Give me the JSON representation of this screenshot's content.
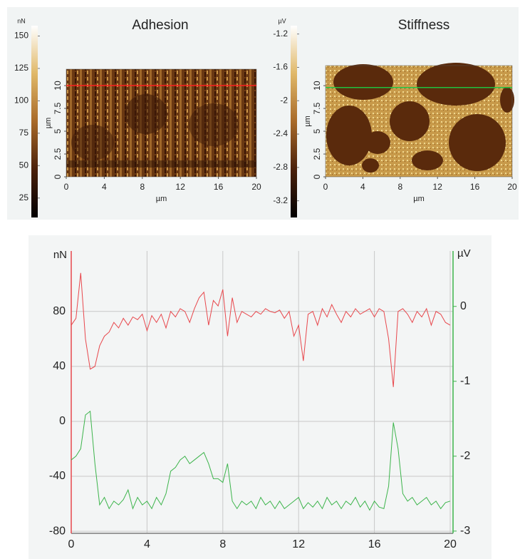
{
  "chart_data": [
    {
      "type": "image",
      "title": "Adhesion",
      "xlabel": "µm",
      "ylabel": "µm",
      "xlim": [
        0,
        20
      ],
      "xticks": [
        0,
        4,
        8,
        12,
        16,
        20
      ],
      "ylim": [
        0,
        11.8
      ],
      "yticks": [
        0,
        2.5,
        5,
        7.5,
        10
      ],
      "colorbar": {
        "label": "nN",
        "clim": [
          10,
          158
        ],
        "ticks": [
          25,
          50,
          75,
          100,
          125,
          150
        ],
        "colormap": [
          "#000000",
          "#4a200a",
          "#a86a2a",
          "#e0b868",
          "#ffffff"
        ]
      },
      "profile_y": 10,
      "profile_color": "#ff2020"
    },
    {
      "type": "image",
      "title": "Stiffness",
      "xlabel": "µm",
      "ylabel": "µm",
      "xlim": [
        0,
        20
      ],
      "xticks": [
        0,
        4,
        8,
        12,
        16,
        20
      ],
      "ylim": [
        0,
        12.2
      ],
      "yticks": [
        0,
        2.5,
        5,
        7.5,
        10
      ],
      "colorbar": {
        "label": "µV",
        "clim": [
          -3.4,
          -1.1
        ],
        "ticks": [
          -3.2,
          -2.8,
          -2.4,
          -2,
          -1.6,
          -1.2
        ],
        "colormap": [
          "#000000",
          "#4a200a",
          "#a86a2a",
          "#e0b868",
          "#ffffff"
        ]
      },
      "profile_y": 9.8,
      "profile_color": "#20c040"
    },
    {
      "type": "line",
      "ylabel": "nN",
      "y2label": "µV",
      "grid": true,
      "xlim": [
        0,
        20
      ],
      "xticks": [
        0,
        4,
        8,
        12,
        16,
        20
      ],
      "ylim": [
        -81.5,
        124
      ],
      "yticks": [
        -80,
        -40,
        0,
        40,
        80
      ],
      "y2lim": [
        -3.03,
        0.74
      ],
      "y2ticks": [
        -3,
        -2,
        -1,
        0
      ],
      "x": [
        0,
        0.25,
        0.5,
        0.75,
        1,
        1.25,
        1.5,
        1.75,
        2,
        2.25,
        2.5,
        2.75,
        3,
        3.25,
        3.5,
        3.75,
        4,
        4.25,
        4.5,
        4.75,
        5,
        5.25,
        5.5,
        5.75,
        6,
        6.25,
        6.5,
        6.75,
        7,
        7.25,
        7.5,
        7.75,
        8,
        8.25,
        8.5,
        8.75,
        9,
        9.25,
        9.5,
        9.75,
        10,
        10.25,
        10.5,
        10.75,
        11,
        11.25,
        11.5,
        11.75,
        12,
        12.25,
        12.5,
        12.75,
        13,
        13.25,
        13.5,
        13.75,
        14,
        14.25,
        14.5,
        14.75,
        15,
        15.25,
        15.5,
        15.75,
        16,
        16.25,
        16.5,
        16.75,
        17,
        17.25,
        17.5,
        17.75,
        18,
        18.25,
        18.5,
        18.75,
        19,
        19.25,
        19.5,
        19.75,
        20
      ],
      "series": [
        {
          "color": "#e8474c",
          "values": [
            70,
            75,
            108,
            60,
            38,
            40,
            55,
            62,
            65,
            72,
            68,
            75,
            70,
            76,
            74,
            78,
            66,
            77,
            72,
            78,
            68,
            80,
            76,
            82,
            80,
            72,
            82,
            90,
            94,
            70,
            88,
            84,
            96,
            62,
            90,
            72,
            80,
            78,
            76,
            80,
            78,
            82,
            80,
            79,
            81,
            75,
            80,
            62,
            70,
            44,
            78,
            80,
            70,
            82,
            76,
            85,
            78,
            72,
            80,
            76,
            82,
            78,
            80,
            82,
            76,
            82,
            80,
            60,
            25,
            80,
            82,
            78,
            72,
            80,
            76,
            82,
            70,
            80,
            78,
            72,
            70
          ]
        },
        {
          "color": "#3cb44b",
          "axis": "y2",
          "values": [
            -2.05,
            -2.0,
            -1.9,
            -1.45,
            -1.4,
            -2.1,
            -2.65,
            -2.55,
            -2.7,
            -2.6,
            -2.65,
            -2.58,
            -2.45,
            -2.7,
            -2.55,
            -2.65,
            -2.6,
            -2.7,
            -2.55,
            -2.65,
            -2.5,
            -2.2,
            -2.15,
            -2.05,
            -2.0,
            -2.1,
            -2.05,
            -2.0,
            -1.95,
            -2.1,
            -2.3,
            -2.3,
            -2.35,
            -2.1,
            -2.6,
            -2.7,
            -2.6,
            -2.65,
            -2.6,
            -2.7,
            -2.55,
            -2.65,
            -2.6,
            -2.7,
            -2.6,
            -2.7,
            -2.65,
            -2.6,
            -2.55,
            -2.7,
            -2.62,
            -2.68,
            -2.6,
            -2.7,
            -2.55,
            -2.65,
            -2.6,
            -2.7,
            -2.6,
            -2.65,
            -2.55,
            -2.68,
            -2.6,
            -2.72,
            -2.6,
            -2.68,
            -2.7,
            -2.4,
            -1.55,
            -1.9,
            -2.5,
            -2.6,
            -2.55,
            -2.65,
            -2.6,
            -2.55,
            -2.65,
            -2.6,
            -2.7,
            -2.62,
            -2.6
          ]
        }
      ]
    }
  ]
}
